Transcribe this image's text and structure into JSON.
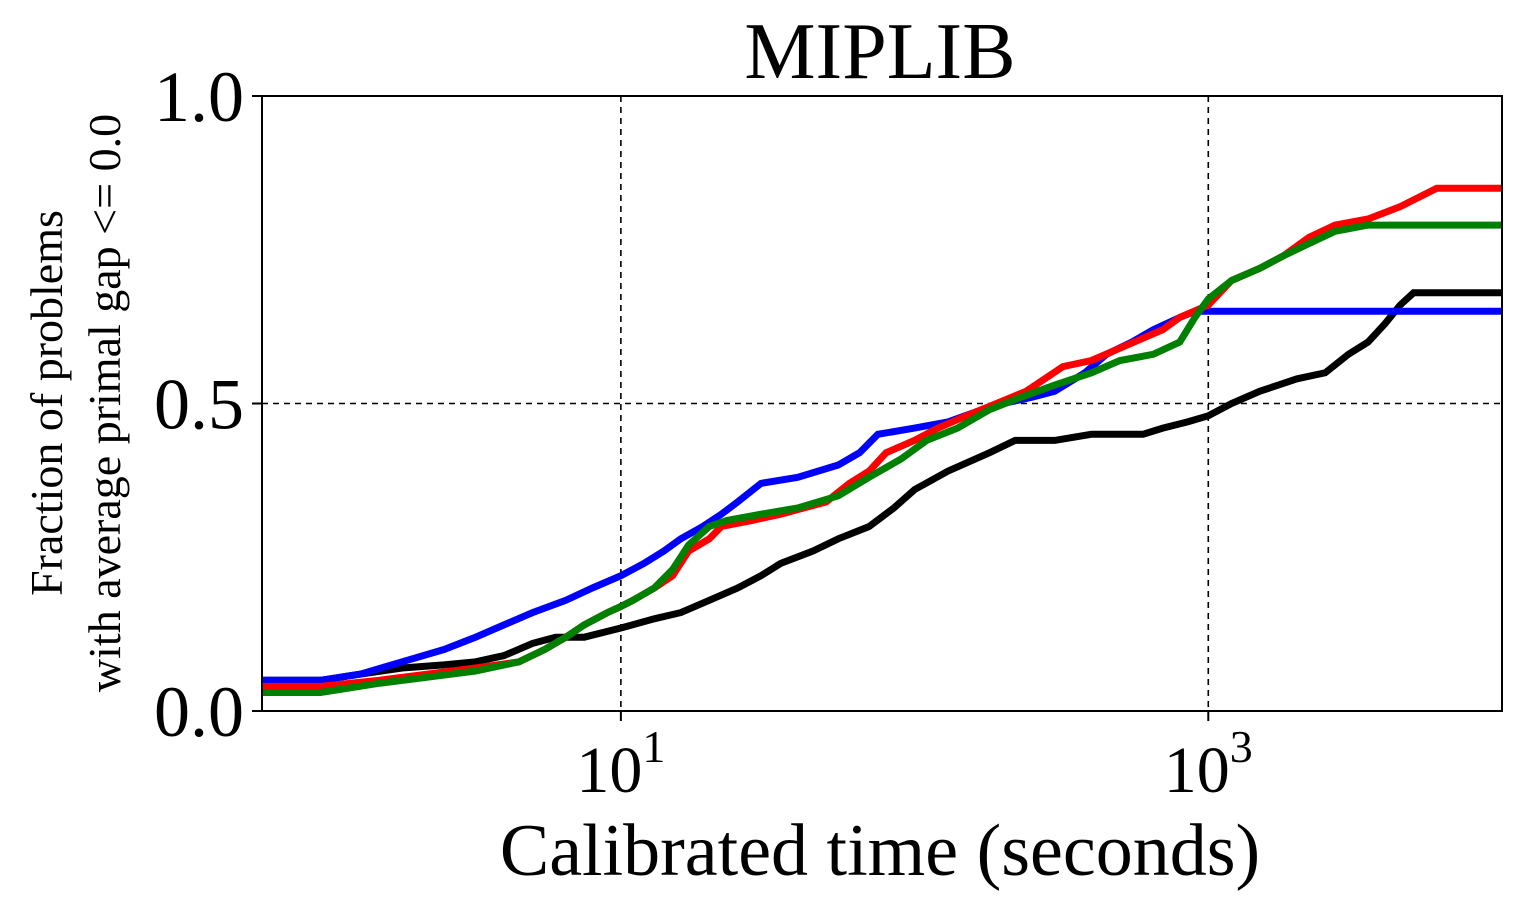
{
  "chart_data": {
    "type": "line",
    "title": "MIPLIB",
    "xlabel": "Calibrated time (seconds)",
    "ylabel": [
      "Fraction of problems",
      "with average primal gap <= 0.0"
    ],
    "xscale": "log",
    "xlim": [
      0.6,
      10000
    ],
    "ylim": [
      0.0,
      1.0
    ],
    "grid": true,
    "x_ticks": [
      {
        "value": 10,
        "base": "10",
        "exp": "1"
      },
      {
        "value": 1000,
        "base": "10",
        "exp": "3"
      }
    ],
    "y_ticks": [
      {
        "value": 0.0,
        "label": "0.0"
      },
      {
        "value": 0.5,
        "label": "0.5"
      },
      {
        "value": 1.0,
        "label": "1.0"
      }
    ],
    "series": [
      {
        "color": "#000000",
        "points": [
          [
            0.6,
            0.05
          ],
          [
            0.95,
            0.05
          ],
          [
            1.3,
            0.06
          ],
          [
            1.8,
            0.07
          ],
          [
            2.5,
            0.075
          ],
          [
            3.2,
            0.08
          ],
          [
            4.0,
            0.09
          ],
          [
            5.0,
            0.11
          ],
          [
            6.0,
            0.12
          ],
          [
            7.5,
            0.12
          ],
          [
            10,
            0.135
          ],
          [
            13,
            0.15
          ],
          [
            16,
            0.16
          ],
          [
            20,
            0.18
          ],
          [
            25,
            0.2
          ],
          [
            30,
            0.22
          ],
          [
            35,
            0.24
          ],
          [
            45,
            0.26
          ],
          [
            55,
            0.28
          ],
          [
            70,
            0.3
          ],
          [
            85,
            0.33
          ],
          [
            100,
            0.36
          ],
          [
            130,
            0.39
          ],
          [
            180,
            0.42
          ],
          [
            220,
            0.44
          ],
          [
            300,
            0.44
          ],
          [
            400,
            0.45
          ],
          [
            600,
            0.45
          ],
          [
            700,
            0.46
          ],
          [
            850,
            0.47
          ],
          [
            1000,
            0.48
          ],
          [
            1200,
            0.5
          ],
          [
            1500,
            0.52
          ],
          [
            2000,
            0.54
          ],
          [
            2500,
            0.55
          ],
          [
            3000,
            0.58
          ],
          [
            3500,
            0.6
          ],
          [
            4000,
            0.63
          ],
          [
            4500,
            0.66
          ],
          [
            5000,
            0.68
          ],
          [
            10000,
            0.68
          ]
        ]
      },
      {
        "color": "#0000ff",
        "points": [
          [
            0.6,
            0.05
          ],
          [
            0.95,
            0.05
          ],
          [
            1.3,
            0.06
          ],
          [
            1.8,
            0.08
          ],
          [
            2.5,
            0.1
          ],
          [
            3.2,
            0.12
          ],
          [
            4.0,
            0.14
          ],
          [
            5.0,
            0.16
          ],
          [
            6.5,
            0.18
          ],
          [
            8.0,
            0.2
          ],
          [
            10,
            0.22
          ],
          [
            12,
            0.24
          ],
          [
            14,
            0.26
          ],
          [
            16,
            0.28
          ],
          [
            19,
            0.3
          ],
          [
            22,
            0.32
          ],
          [
            25,
            0.34
          ],
          [
            30,
            0.37
          ],
          [
            40,
            0.38
          ],
          [
            55,
            0.4
          ],
          [
            65,
            0.42
          ],
          [
            75,
            0.45
          ],
          [
            100,
            0.46
          ],
          [
            130,
            0.47
          ],
          [
            170,
            0.49
          ],
          [
            200,
            0.5
          ],
          [
            250,
            0.51
          ],
          [
            300,
            0.52
          ],
          [
            380,
            0.55
          ],
          [
            450,
            0.58
          ],
          [
            550,
            0.6
          ],
          [
            650,
            0.62
          ],
          [
            800,
            0.64
          ],
          [
            900,
            0.65
          ],
          [
            1000,
            0.65
          ],
          [
            10000,
            0.65
          ]
        ]
      },
      {
        "color": "#ff0000",
        "points": [
          [
            0.6,
            0.04
          ],
          [
            0.95,
            0.04
          ],
          [
            1.5,
            0.05
          ],
          [
            2.2,
            0.06
          ],
          [
            3.2,
            0.07
          ],
          [
            4.5,
            0.08
          ],
          [
            5.5,
            0.1
          ],
          [
            6.5,
            0.12
          ],
          [
            7.5,
            0.14
          ],
          [
            9.0,
            0.16
          ],
          [
            10,
            0.17
          ],
          [
            11,
            0.18
          ],
          [
            13,
            0.2
          ],
          [
            15,
            0.22
          ],
          [
            17,
            0.26
          ],
          [
            20,
            0.28
          ],
          [
            22,
            0.3
          ],
          [
            28,
            0.31
          ],
          [
            35,
            0.32
          ],
          [
            50,
            0.34
          ],
          [
            60,
            0.37
          ],
          [
            70,
            0.39
          ],
          [
            80,
            0.42
          ],
          [
            100,
            0.44
          ],
          [
            120,
            0.46
          ],
          [
            150,
            0.48
          ],
          [
            190,
            0.5
          ],
          [
            240,
            0.52
          ],
          [
            320,
            0.56
          ],
          [
            400,
            0.57
          ],
          [
            500,
            0.59
          ],
          [
            700,
            0.62
          ],
          [
            800,
            0.64
          ],
          [
            1000,
            0.66
          ],
          [
            1200,
            0.7
          ],
          [
            1500,
            0.72
          ],
          [
            1800,
            0.74
          ],
          [
            2200,
            0.77
          ],
          [
            2700,
            0.79
          ],
          [
            3500,
            0.8
          ],
          [
            4500,
            0.82
          ],
          [
            6000,
            0.85
          ],
          [
            10000,
            0.85
          ]
        ]
      },
      {
        "color": "#008000",
        "points": [
          [
            0.6,
            0.03
          ],
          [
            0.95,
            0.03
          ],
          [
            1.5,
            0.045
          ],
          [
            2.2,
            0.055
          ],
          [
            3.2,
            0.065
          ],
          [
            4.5,
            0.08
          ],
          [
            5.5,
            0.1
          ],
          [
            6.5,
            0.12
          ],
          [
            7.5,
            0.14
          ],
          [
            9.0,
            0.16
          ],
          [
            10,
            0.17
          ],
          [
            11,
            0.18
          ],
          [
            13,
            0.2
          ],
          [
            15,
            0.23
          ],
          [
            17,
            0.27
          ],
          [
            20,
            0.3
          ],
          [
            23,
            0.31
          ],
          [
            30,
            0.32
          ],
          [
            40,
            0.33
          ],
          [
            55,
            0.35
          ],
          [
            70,
            0.38
          ],
          [
            90,
            0.41
          ],
          [
            110,
            0.44
          ],
          [
            140,
            0.46
          ],
          [
            180,
            0.49
          ],
          [
            230,
            0.51
          ],
          [
            300,
            0.53
          ],
          [
            400,
            0.55
          ],
          [
            500,
            0.57
          ],
          [
            650,
            0.58
          ],
          [
            800,
            0.6
          ],
          [
            900,
            0.64
          ],
          [
            1000,
            0.67
          ],
          [
            1200,
            0.7
          ],
          [
            1500,
            0.72
          ],
          [
            1800,
            0.74
          ],
          [
            2200,
            0.76
          ],
          [
            2700,
            0.78
          ],
          [
            3500,
            0.79
          ],
          [
            5000,
            0.79
          ],
          [
            10000,
            0.79
          ]
        ]
      }
    ]
  }
}
